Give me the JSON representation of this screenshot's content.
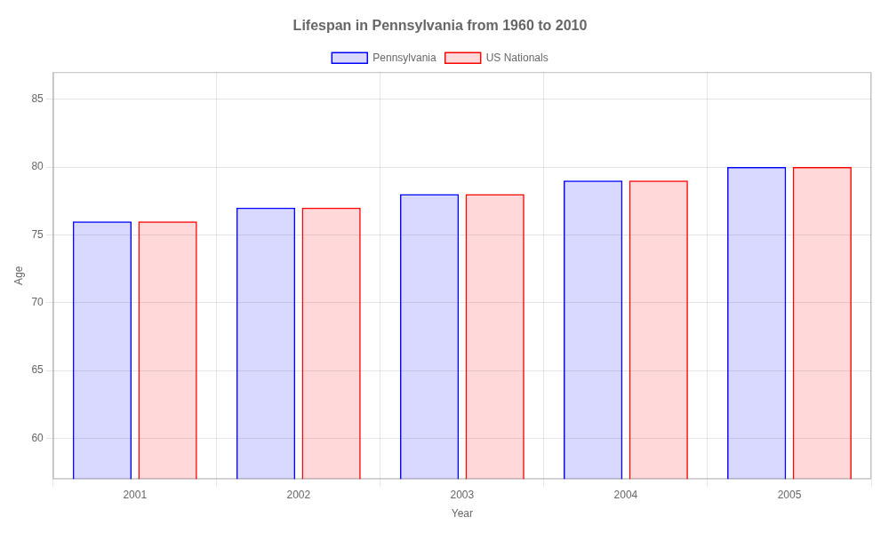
{
  "chart_data": {
    "type": "bar",
    "title": "Lifespan in Pennsylvania from 1960 to 2010",
    "xlabel": "Year",
    "ylabel": "Age",
    "categories": [
      "2001",
      "2002",
      "2003",
      "2004",
      "2005"
    ],
    "series": [
      {
        "name": "Pennsylvania",
        "color": "#0000ff",
        "values": [
          76,
          77,
          78,
          79,
          80
        ]
      },
      {
        "name": "US Nationals",
        "color": "#ff0000",
        "values": [
          76,
          77,
          78,
          79,
          80
        ]
      }
    ],
    "ylim": [
      57,
      87
    ],
    "yticks": [
      60,
      65,
      70,
      75,
      80,
      85
    ],
    "grid": true,
    "legend": "top"
  }
}
